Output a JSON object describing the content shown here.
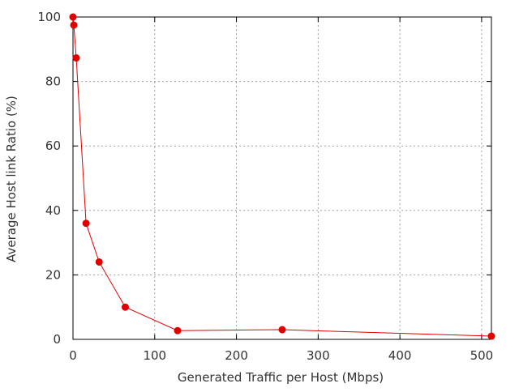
{
  "chart_data": {
    "type": "line",
    "title": "",
    "xlabel": "Generated Traffic per Host (Mbps)",
    "ylabel": "Average Host link Ratio (%)",
    "xlim": [
      0,
      512
    ],
    "ylim": [
      0,
      100
    ],
    "xticks": [
      0,
      100,
      200,
      300,
      400,
      500
    ],
    "yticks": [
      0,
      20,
      40,
      60,
      80,
      100
    ],
    "x_tick_labels": [
      "0",
      "100",
      "200",
      "300",
      "400",
      "500"
    ],
    "y_tick_labels": [
      "0",
      "20",
      "40",
      "60",
      "80",
      "100"
    ],
    "grid": true,
    "legend": "none",
    "series": [
      {
        "color": "#e00000",
        "x": [
          0,
          1,
          4,
          16,
          32,
          64,
          128,
          256,
          512
        ],
        "y": [
          100,
          97.5,
          87.3,
          36,
          24,
          10,
          2.7,
          3,
          1
        ]
      }
    ]
  }
}
